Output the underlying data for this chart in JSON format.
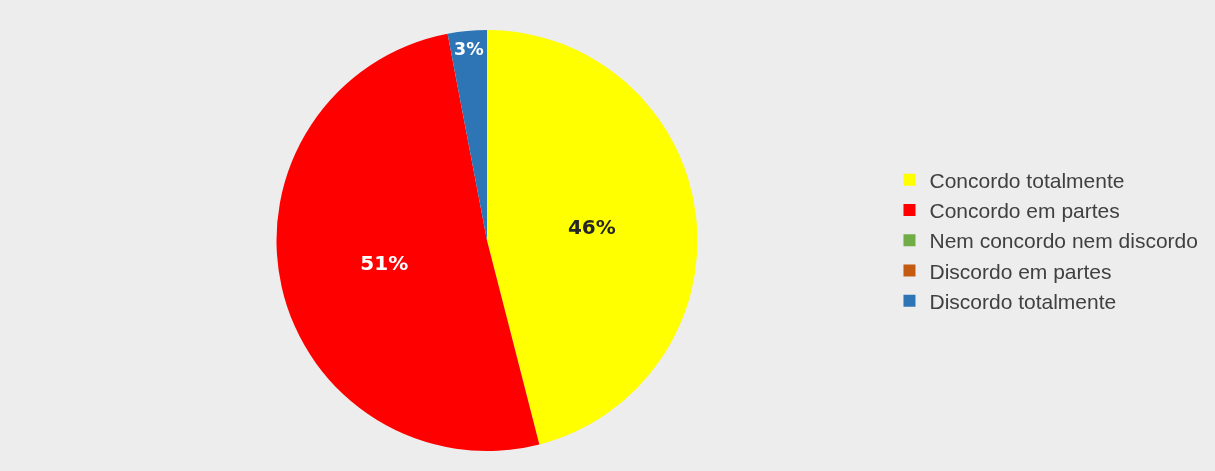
{
  "chart_data": {
    "type": "pie",
    "categories": [
      "Concordo totalmente",
      "Concordo em partes",
      "Nem concordo nem discordo",
      "Discordo em partes",
      "Discordo totalmente"
    ],
    "values": [
      46,
      51,
      0,
      0,
      3
    ],
    "colors": [
      "#ffff00",
      "#ff0000",
      "#70ad47",
      "#c55a11",
      "#2e75b6"
    ],
    "value_labels": [
      "46%",
      "51%",
      null,
      null,
      "3%"
    ],
    "legend": "right"
  }
}
